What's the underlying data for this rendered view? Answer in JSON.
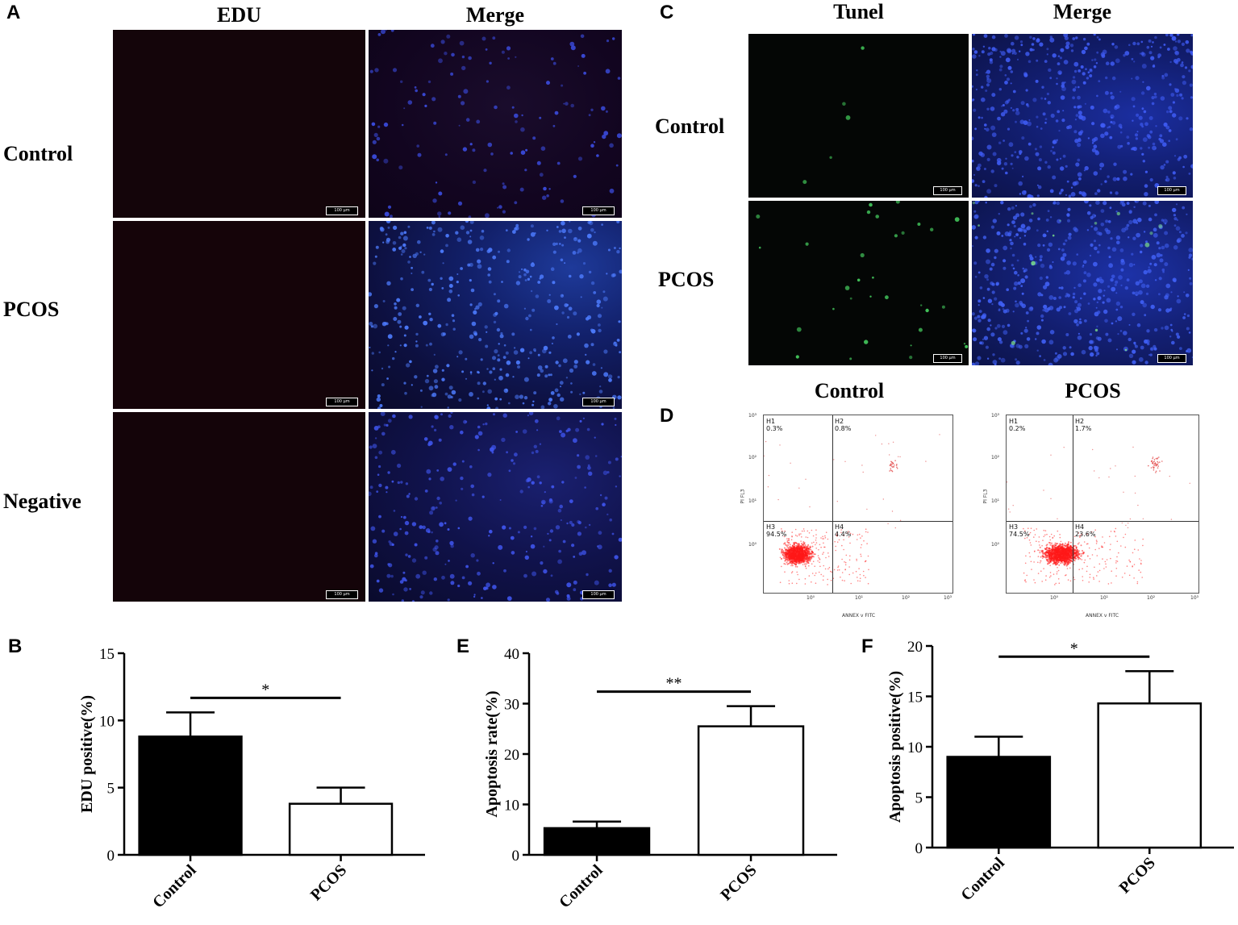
{
  "panel_letters": {
    "a": "A",
    "b": "B",
    "c": "C",
    "d": "D",
    "e": "E",
    "f": "F"
  },
  "panel_a": {
    "columns": [
      "EDU",
      "Merge"
    ],
    "rows": [
      "Control",
      "PCOS",
      "Negative"
    ],
    "scale_bar": "100 µm"
  },
  "panel_c": {
    "columns": [
      "Tunel",
      "Merge"
    ],
    "rows": [
      "Control",
      "PCOS"
    ],
    "scale_bar": "100 µm"
  },
  "panel_d": {
    "titles": [
      "Control",
      "PCOS"
    ],
    "x_axis_label": "ANNEX v FITC",
    "y_axis_label": "PI FL3",
    "tick_labels": [
      "10⁰",
      "10¹",
      "10²",
      "10³"
    ],
    "plots": [
      {
        "quadrants": {
          "H1": "0.3%",
          "H2": "0.8%",
          "H3": "94.5%",
          "H4": "4.4%"
        }
      },
      {
        "quadrants": {
          "H1": "0.2%",
          "H2": "1.7%",
          "H3": "74.5%",
          "H4": "23.6%"
        }
      }
    ]
  },
  "chart_data": [
    {
      "panel": "B",
      "type": "bar",
      "categories": [
        "Control",
        "PCOS"
      ],
      "values": [
        8.8,
        3.8
      ],
      "errors": [
        1.8,
        1.2
      ],
      "bar_colors": [
        "#000000",
        "#ffffff"
      ],
      "ylabel": "EDU positive(%)",
      "ylim": [
        0,
        15
      ],
      "yticks": [
        0,
        5,
        10,
        15
      ],
      "significance": "*"
    },
    {
      "panel": "E",
      "type": "bar",
      "categories": [
        "Control",
        "PCOS"
      ],
      "values": [
        5.3,
        25.5
      ],
      "errors": [
        1.3,
        4.0
      ],
      "bar_colors": [
        "#000000",
        "#ffffff"
      ],
      "ylabel": "Apoptosis rate(%)",
      "ylim": [
        0,
        40
      ],
      "yticks": [
        0,
        10,
        20,
        30,
        40
      ],
      "significance": "**"
    },
    {
      "panel": "F",
      "type": "bar",
      "categories": [
        "Control",
        "PCOS"
      ],
      "values": [
        9.0,
        14.3
      ],
      "errors": [
        2.0,
        3.2
      ],
      "bar_colors": [
        "#000000",
        "#ffffff"
      ],
      "ylabel": "Apoptosis positive(%)",
      "ylim": [
        0,
        20
      ],
      "yticks": [
        0,
        5,
        10,
        15,
        20
      ],
      "significance": "*"
    }
  ]
}
